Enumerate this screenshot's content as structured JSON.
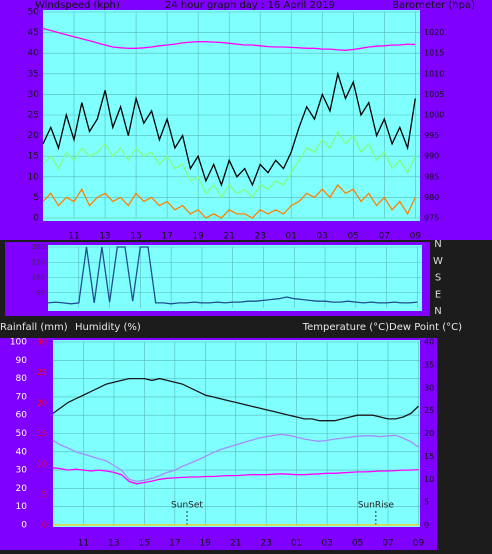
{
  "chart_data": [
    {
      "type": "line",
      "title": "24 hour graph day : 16 April 2019",
      "ylabel": "Windspeed (kph)",
      "y2label": "Barometer (hpa)",
      "x": [
        9,
        9.5,
        10,
        10.5,
        11,
        11.5,
        12,
        12.5,
        13,
        13.5,
        14,
        14.5,
        15,
        15.5,
        16,
        16.5,
        17,
        17.5,
        18,
        18.5,
        19,
        19.5,
        20,
        20.5,
        21,
        21.5,
        22,
        22.5,
        23,
        23.5,
        24,
        24.5,
        25,
        25.5,
        26,
        26.5,
        27,
        27.5,
        28,
        28.5,
        29,
        29.5,
        30,
        30.5,
        31,
        31.5,
        32,
        32.5,
        33
      ],
      "xlim": [
        9,
        33.3
      ],
      "xticks": [
        11,
        13,
        15,
        17,
        19,
        21,
        23,
        {
          "value": 25,
          "label": "01"
        },
        {
          "value": 27,
          "label": "03"
        },
        {
          "value": 29,
          "label": "05"
        },
        {
          "value": 31,
          "label": "07"
        },
        {
          "value": 33,
          "label": "09"
        }
      ],
      "ylim": [
        0,
        50
      ],
      "yticks": [
        0,
        5,
        10,
        15,
        20,
        25,
        30,
        35,
        40,
        45,
        50
      ],
      "y2lim": [
        975,
        1025
      ],
      "y2ticks": [
        975,
        980,
        985,
        990,
        995,
        1000,
        1005,
        1010,
        1015,
        1020
      ],
      "grid": true,
      "series": [
        {
          "color": "#ff8000",
          "values": [
            4,
            6,
            3,
            5,
            4,
            7,
            3,
            5,
            6,
            4,
            5,
            3,
            6,
            4,
            5,
            3,
            4,
            2,
            3,
            1,
            2,
            0,
            1,
            0,
            2,
            1,
            1,
            0,
            2,
            1,
            2,
            1,
            3,
            4,
            6,
            5,
            7,
            5,
            8,
            6,
            7,
            4,
            6,
            3,
            5,
            2,
            4,
            1,
            5
          ]
        },
        {
          "color": "#80ff80",
          "values": [
            13,
            15,
            12,
            16,
            14,
            17,
            15,
            16,
            18,
            15,
            17,
            14,
            17,
            15,
            16,
            13,
            15,
            12,
            13,
            9,
            10,
            6,
            8,
            5,
            8,
            6,
            7,
            5,
            8,
            7,
            9,
            8,
            11,
            14,
            17,
            16,
            19,
            17,
            21,
            18,
            20,
            16,
            18,
            14,
            16,
            12,
            14,
            11,
            15
          ]
        },
        {
          "color": "#000000",
          "values": [
            18,
            22,
            17,
            25,
            19,
            28,
            21,
            24,
            31,
            22,
            27,
            20,
            29,
            23,
            26,
            19,
            24,
            17,
            20,
            12,
            15,
            9,
            13,
            8,
            14,
            10,
            12,
            8,
            13,
            11,
            14,
            12,
            16,
            22,
            27,
            24,
            30,
            26,
            35,
            29,
            33,
            25,
            28,
            20,
            24,
            18,
            22,
            17,
            29
          ]
        },
        {
          "color": "#ff00ff",
          "axis": "y2",
          "values": [
            1021,
            1020.5,
            1020,
            1019.5,
            1019,
            1018.5,
            1018,
            1017.5,
            1017,
            1016.5,
            1016.3,
            1016.2,
            1016.2,
            1016.3,
            1016.5,
            1016.8,
            1017,
            1017.2,
            1017.5,
            1017.7,
            1017.8,
            1017.8,
            1017.7,
            1017.6,
            1017.4,
            1017.2,
            1017,
            1017,
            1016.8,
            1016.6,
            1016.5,
            1016.5,
            1016.4,
            1016.3,
            1016.2,
            1016.2,
            1016,
            1016,
            1015.8,
            1015.7,
            1015.9,
            1016.2,
            1016.5,
            1016.7,
            1016.8,
            1017,
            1017,
            1017.2,
            1017.1
          ]
        }
      ]
    },
    {
      "type": "line",
      "x": [
        9,
        9.5,
        10,
        10.5,
        11,
        11.5,
        12,
        12.5,
        13,
        13.5,
        14,
        14.5,
        15,
        15.5,
        16,
        16.5,
        17,
        17.5,
        18,
        18.5,
        19,
        19.5,
        20,
        20.5,
        21,
        21.5,
        22,
        22.5,
        23,
        23.5,
        24,
        24.5,
        25,
        25.5,
        26,
        26.5,
        27,
        27.5,
        28,
        28.5,
        29,
        29.5,
        30,
        30.5,
        31,
        31.5,
        32,
        32.5,
        33
      ],
      "xlim": [
        9,
        33.3
      ],
      "xticks": [
        11,
        13,
        15,
        17,
        19,
        21,
        23,
        25,
        27,
        29,
        31,
        33
      ],
      "ylim": [
        0,
        360
      ],
      "yticks": [
        90,
        180,
        270,
        360
      ],
      "direction_labels": [
        "N",
        "W",
        "S",
        "E",
        "N"
      ],
      "grid": true,
      "series": [
        {
          "color": "#1f4f8f",
          "values": [
            30,
            35,
            30,
            25,
            30,
            360,
            30,
            360,
            35,
            360,
            360,
            40,
            360,
            360,
            30,
            30,
            25,
            30,
            30,
            35,
            30,
            30,
            35,
            30,
            35,
            35,
            40,
            40,
            45,
            50,
            55,
            65,
            55,
            50,
            45,
            40,
            40,
            35,
            35,
            40,
            35,
            30,
            35,
            30,
            30,
            35,
            30,
            30,
            35
          ]
        }
      ]
    },
    {
      "type": "line",
      "ylabel": "Humidity (%)",
      "y3label": "Rainfall (mm)",
      "y2label": "Temperature (°C)Dew Point (°C)",
      "x": [
        9,
        9.5,
        10,
        10.5,
        11,
        11.5,
        12,
        12.5,
        13,
        13.5,
        14,
        14.5,
        15,
        15.5,
        16,
        16.5,
        17,
        17.5,
        18,
        18.5,
        19,
        19.5,
        20,
        20.5,
        21,
        21.5,
        22,
        22.5,
        23,
        23.5,
        24,
        24.5,
        25,
        25.5,
        26,
        26.5,
        27,
        27.5,
        28,
        28.5,
        29,
        29.5,
        30,
        30.5,
        31,
        31.5,
        32,
        32.5,
        33
      ],
      "xlim": [
        9,
        33.1
      ],
      "xticks": [
        11,
        13,
        15,
        17,
        19,
        21,
        23,
        {
          "value": 25,
          "label": "01"
        },
        {
          "value": 27,
          "label": "03"
        },
        {
          "value": 29,
          "label": "05"
        },
        {
          "value": 31,
          "label": "07"
        },
        {
          "value": 33,
          "label": "09"
        }
      ],
      "ylim": [
        0,
        100
      ],
      "yticks": [
        0,
        10,
        20,
        30,
        40,
        50,
        60,
        70,
        80,
        90,
        100
      ],
      "y2lim": [
        0,
        40
      ],
      "y2ticks": [
        0,
        5,
        10,
        15,
        20,
        25,
        30,
        35,
        40
      ],
      "y3lim": [
        0,
        30
      ],
      "y3ticks": [
        0,
        5,
        10,
        15,
        20,
        25,
        30
      ],
      "grid": true,
      "annotations": [
        {
          "text": "SunSet",
          "x": 17.8
        },
        {
          "text": "SunRise",
          "x": 30.2
        }
      ],
      "series": [
        {
          "color": "#ffcc00",
          "axis": "y3",
          "values": [
            0,
            0,
            0,
            0,
            0,
            0,
            0,
            0,
            0,
            0,
            0,
            0,
            0,
            0,
            0,
            0,
            0,
            0,
            0,
            0,
            0,
            0,
            0,
            0,
            0,
            0,
            0,
            0,
            0,
            0,
            0,
            0,
            0,
            0,
            0,
            0,
            0,
            0,
            0,
            0,
            0,
            0,
            0,
            0,
            0,
            0,
            0,
            0,
            0
          ]
        },
        {
          "color": "#ff00ff",
          "axis": "y2",
          "values": [
            12.5,
            12.3,
            12,
            12.2,
            12,
            11.8,
            12,
            11.8,
            11.5,
            11,
            9.5,
            9,
            9.3,
            9.6,
            10,
            10.2,
            10.3,
            10.4,
            10.5,
            10.5,
            10.6,
            10.6,
            10.7,
            10.8,
            10.8,
            10.9,
            11,
            11,
            11,
            11.1,
            11.2,
            11.1,
            11,
            11,
            11.1,
            11.2,
            11.3,
            11.3,
            11.4,
            11.5,
            11.6,
            11.6,
            11.7,
            11.8,
            11.8,
            11.9,
            12,
            12,
            12.1
          ]
        },
        {
          "color": "#a68cff",
          "axis": "y2",
          "values": [
            18.5,
            17.5,
            16.8,
            16,
            15.5,
            15,
            14.5,
            14,
            13,
            12,
            10,
            9.5,
            9.8,
            10.2,
            10.8,
            11.5,
            12,
            12.8,
            13.5,
            14.2,
            15,
            15.8,
            16.5,
            17,
            17.5,
            18,
            18.5,
            19,
            19.3,
            19.6,
            19.8,
            19.6,
            19.2,
            18.8,
            18.5,
            18.3,
            18.5,
            18.8,
            19,
            19.2,
            19.4,
            19.5,
            19.5,
            19.3,
            19.5,
            19.6,
            19,
            18.2,
            17
          ]
        },
        {
          "color": "#1a1a1a",
          "values": [
            61,
            64,
            67,
            69,
            71,
            73,
            75,
            77,
            78,
            79,
            80,
            80,
            80,
            79,
            80,
            79,
            78,
            77,
            75,
            73,
            71,
            70,
            69,
            68,
            67,
            66,
            65,
            64,
            63,
            62,
            61,
            60,
            59,
            58,
            58,
            57,
            57,
            57,
            58,
            59,
            60,
            60,
            60,
            59,
            58,
            58,
            59,
            61,
            65
          ]
        }
      ]
    }
  ]
}
